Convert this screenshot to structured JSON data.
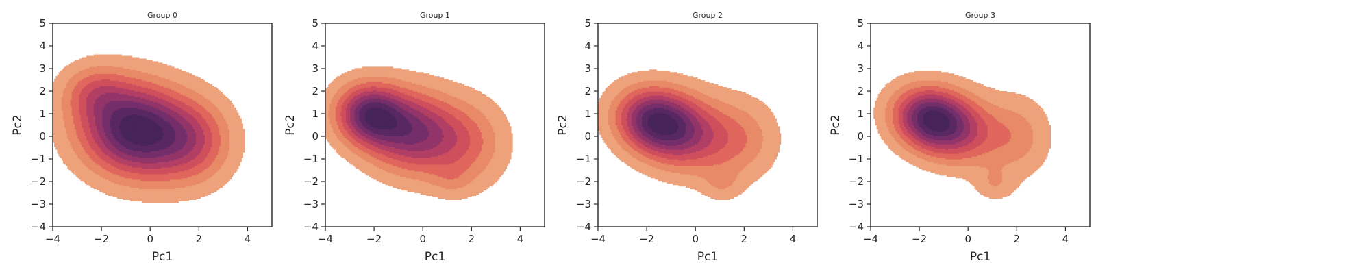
{
  "chart_data": [
    {
      "type": "kde-contour",
      "title": "Group 0",
      "xlabel": "Pc1",
      "ylabel": "Pc2",
      "xlim": [
        -4,
        5
      ],
      "ylim": [
        -4,
        5
      ],
      "xticks": [
        -4,
        -2,
        0,
        2,
        4
      ],
      "yticks": [
        -4,
        -3,
        -2,
        -1,
        0,
        1,
        2,
        3,
        4,
        5
      ],
      "xtick_labels": [
        "−4",
        "−2",
        "0",
        "2",
        "4"
      ],
      "ytick_labels": [
        "−4",
        "−3",
        "−2",
        "−1",
        "0",
        "1",
        "2",
        "3",
        "4",
        "5"
      ],
      "levels": 9,
      "colormap": [
        "#eea27b",
        "#e88a67",
        "#e0675d",
        "#cf4f5d",
        "#b23f65",
        "#933569",
        "#742e6a",
        "#592863",
        "#472459"
      ],
      "components": [
        {
          "cx": -0.6,
          "cy": 0.3,
          "sx": 1.55,
          "sy": 1.35,
          "tilt": -0.35,
          "w": 1.0
        },
        {
          "cx": 1.8,
          "cy": -0.2,
          "sx": 1.1,
          "sy": 1.25,
          "tilt": 0,
          "w": 0.35
        },
        {
          "cx": -2.3,
          "cy": 2.0,
          "sx": 0.9,
          "sy": 0.8,
          "tilt": 0,
          "w": 0.25
        }
      ]
    },
    {
      "type": "kde-contour",
      "title": "Group 1",
      "xlabel": "Pc1",
      "ylabel": "Pc2",
      "xlim": [
        -4,
        5
      ],
      "ylim": [
        -4,
        5
      ],
      "xticks": [
        -4,
        -2,
        0,
        2,
        4
      ],
      "yticks": [
        -4,
        -3,
        -2,
        -1,
        0,
        1,
        2,
        3,
        4,
        5
      ],
      "xtick_labels": [
        "−4",
        "−2",
        "0",
        "2",
        "4"
      ],
      "ytick_labels": [
        "−4",
        "−3",
        "−2",
        "−1",
        "0",
        "1",
        "2",
        "3",
        "4",
        "5"
      ],
      "levels": 9,
      "colormap": [
        "#eea27b",
        "#e88a67",
        "#e0675d",
        "#cf4f5d",
        "#b23f65",
        "#933569",
        "#742e6a",
        "#592863",
        "#472459"
      ],
      "components": [
        {
          "cx": -2.2,
          "cy": 1.0,
          "sx": 0.95,
          "sy": 0.9,
          "tilt": -0.4,
          "w": 0.9
        },
        {
          "cx": -0.4,
          "cy": 0.2,
          "sx": 1.35,
          "sy": 1.2,
          "tilt": -0.35,
          "w": 0.85
        },
        {
          "cx": 1.9,
          "cy": -0.3,
          "sx": 1.1,
          "sy": 1.3,
          "tilt": 0,
          "w": 0.3
        },
        {
          "cx": 1.2,
          "cy": -1.9,
          "sx": 0.6,
          "sy": 0.5,
          "tilt": 0,
          "w": 0.12
        }
      ]
    },
    {
      "type": "kde-contour",
      "title": "Group 2",
      "xlabel": "Pc1",
      "ylabel": "Pc2",
      "xlim": [
        -4,
        5
      ],
      "ylim": [
        -4,
        5
      ],
      "xticks": [
        -4,
        -2,
        0,
        2,
        4
      ],
      "yticks": [
        -4,
        -3,
        -2,
        -1,
        0,
        1,
        2,
        3,
        4,
        5
      ],
      "xtick_labels": [
        "−4",
        "−2",
        "0",
        "2",
        "4"
      ],
      "ytick_labels": [
        "−4",
        "−3",
        "−2",
        "−1",
        "0",
        "1",
        "2",
        "3",
        "4",
        "5"
      ],
      "levels": 9,
      "colormap": [
        "#eea27b",
        "#e88a67",
        "#e0675d",
        "#cf4f5d",
        "#b23f65",
        "#933569",
        "#742e6a",
        "#592863",
        "#472459"
      ],
      "components": [
        {
          "cx": -1.7,
          "cy": 0.7,
          "sx": 1.1,
          "sy": 0.95,
          "tilt": -0.45,
          "w": 1.0
        },
        {
          "cx": -0.2,
          "cy": 0.1,
          "sx": 1.3,
          "sy": 1.15,
          "tilt": -0.4,
          "w": 0.6
        },
        {
          "cx": 2.0,
          "cy": -0.1,
          "sx": 1.0,
          "sy": 1.2,
          "tilt": 0,
          "w": 0.25
        },
        {
          "cx": 1.1,
          "cy": -2.1,
          "sx": 0.55,
          "sy": 0.5,
          "tilt": 0,
          "w": 0.16
        }
      ]
    },
    {
      "type": "kde-contour",
      "title": "Group 3",
      "xlabel": "Pc1",
      "ylabel": "Pc2",
      "xlim": [
        -4,
        5
      ],
      "ylim": [
        -4,
        5
      ],
      "xticks": [
        -4,
        -2,
        0,
        2,
        4
      ],
      "yticks": [
        -4,
        -3,
        -2,
        -1,
        0,
        1,
        2,
        3,
        4,
        5
      ],
      "xtick_labels": [
        "−4",
        "−2",
        "0",
        "2",
        "4"
      ],
      "ytick_labels": [
        "−4",
        "−3",
        "−2",
        "−1",
        "0",
        "1",
        "2",
        "3",
        "4",
        "5"
      ],
      "levels": 9,
      "colormap": [
        "#eea27b",
        "#e88a67",
        "#e0675d",
        "#cf4f5d",
        "#b23f65",
        "#933569",
        "#742e6a",
        "#592863",
        "#472459"
      ],
      "components": [
        {
          "cx": -1.6,
          "cy": 0.8,
          "sx": 1.05,
          "sy": 0.9,
          "tilt": -0.45,
          "w": 1.0
        },
        {
          "cx": -0.3,
          "cy": 0.3,
          "sx": 1.25,
          "sy": 1.05,
          "tilt": -0.4,
          "w": 0.55
        },
        {
          "cx": 2.1,
          "cy": 0.0,
          "sx": 0.9,
          "sy": 1.2,
          "tilt": 0,
          "w": 0.25
        },
        {
          "cx": 1.1,
          "cy": -2.1,
          "sx": 0.55,
          "sy": 0.5,
          "tilt": 0,
          "w": 0.18
        }
      ]
    }
  ]
}
